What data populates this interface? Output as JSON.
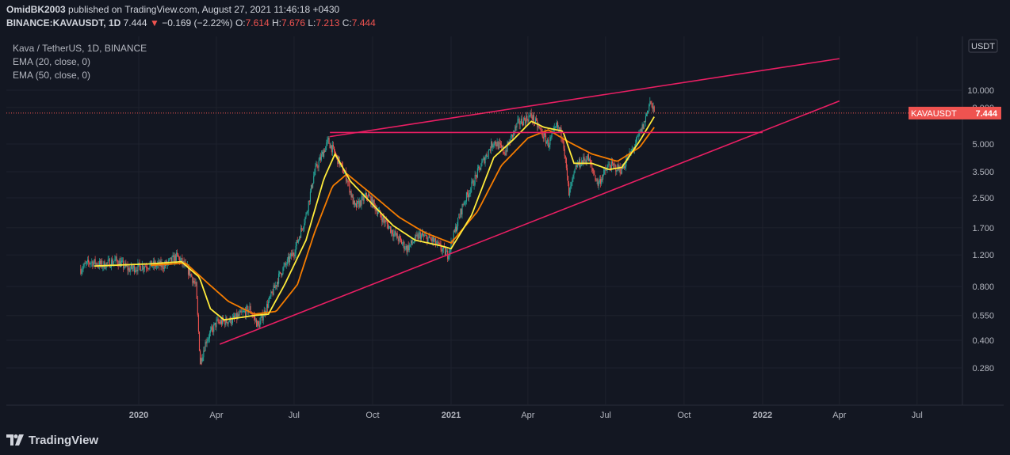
{
  "header": {
    "author": "OmidBK2003",
    "published_text": "published on TradingView.com, August 27, 2021 11:46:18 +0430",
    "symbol_line": "BINANCE:KAVAUSDT, 1D",
    "last": "7.444",
    "change": "−0.169 (−2.22%)",
    "o_label": "O:",
    "o_value": "7.614",
    "h_label": "H:",
    "h_value": "7.676",
    "l_label": "L:",
    "l_value": "7.213",
    "c_label": "C:",
    "c_value": "7.444"
  },
  "legend": {
    "title": "Kava / TetherUS, 1D, BINANCE",
    "ema20": "EMA (20, close, 0)",
    "ema50": "EMA (50, close, 0)"
  },
  "footer": {
    "brand": "TradingView"
  },
  "colors": {
    "background": "#131722",
    "up": "#26a69a",
    "down": "#ef5350",
    "ema20": "#ffeb3b",
    "ema50": "#f57c00",
    "trendline": "#e91e63",
    "price_badge": "#ef5350"
  },
  "chart_data": {
    "type": "candlestick",
    "scale": "log",
    "currency_label": "USDT",
    "y_ticks": [
      10,
      8,
      5,
      3.5,
      2.5,
      1.7,
      1.2,
      0.8,
      0.55,
      0.4,
      0.28
    ],
    "y_tick_labels": [
      "10.000",
      "8.000",
      "5.000",
      "3.500",
      "2.500",
      "1.700",
      "1.200",
      "0.800",
      "0.550",
      "0.400",
      "0.280"
    ],
    "x_ticks": [
      "2020",
      "Apr",
      "Jul",
      "Oct",
      "2021",
      "Apr",
      "Jul",
      "Oct",
      "2022",
      "Apr",
      "Jul"
    ],
    "x_ticks_bold": [
      true,
      false,
      false,
      false,
      true,
      false,
      false,
      false,
      true,
      false,
      false
    ],
    "x_tick_dates": [
      "2020-01-01",
      "2020-04-01",
      "2020-07-01",
      "2020-10-01",
      "2021-01-01",
      "2021-04-01",
      "2021-07-01",
      "2021-10-01",
      "2022-01-01",
      "2022-04-01",
      "2022-07-01"
    ],
    "last_price": 7.444,
    "last_price_label": "KAVAUSDT",
    "last_price_text": "7.444",
    "close_path": [
      [
        "2019-10-25",
        1.0
      ],
      [
        "2019-11-05",
        1.1
      ],
      [
        "2019-11-20",
        1.05
      ],
      [
        "2019-12-05",
        1.12
      ],
      [
        "2019-12-20",
        1.0
      ],
      [
        "2020-01-10",
        1.05
      ],
      [
        "2020-02-01",
        1.05
      ],
      [
        "2020-02-15",
        1.18
      ],
      [
        "2020-03-01",
        0.95
      ],
      [
        "2020-03-08",
        0.8
      ],
      [
        "2020-03-13",
        0.3
      ],
      [
        "2020-03-20",
        0.4
      ],
      [
        "2020-04-01",
        0.5
      ],
      [
        "2020-04-20",
        0.52
      ],
      [
        "2020-05-10",
        0.6
      ],
      [
        "2020-05-20",
        0.48
      ],
      [
        "2020-06-01",
        0.65
      ],
      [
        "2020-06-15",
        0.95
      ],
      [
        "2020-07-01",
        1.25
      ],
      [
        "2020-07-15",
        2.0
      ],
      [
        "2020-07-25",
        3.5
      ],
      [
        "2020-08-10",
        5.2
      ],
      [
        "2020-08-20",
        4.2
      ],
      [
        "2020-09-01",
        3.2
      ],
      [
        "2020-09-10",
        2.2
      ],
      [
        "2020-09-25",
        2.6
      ],
      [
        "2020-10-10",
        2.0
      ],
      [
        "2020-10-25",
        1.6
      ],
      [
        "2020-11-10",
        1.3
      ],
      [
        "2020-11-25",
        1.55
      ],
      [
        "2020-12-10",
        1.45
      ],
      [
        "2020-12-28",
        1.2
      ],
      [
        "2021-01-15",
        2.3
      ],
      [
        "2021-02-05",
        3.8
      ],
      [
        "2021-02-20",
        5.2
      ],
      [
        "2021-03-05",
        4.5
      ],
      [
        "2021-03-20",
        6.5
      ],
      [
        "2021-04-05",
        7.2
      ],
      [
        "2021-04-15",
        6.0
      ],
      [
        "2021-04-25",
        5.0
      ],
      [
        "2021-05-05",
        6.3
      ],
      [
        "2021-05-12",
        5.5
      ],
      [
        "2021-05-19",
        2.6
      ],
      [
        "2021-05-28",
        3.8
      ],
      [
        "2021-06-10",
        4.2
      ],
      [
        "2021-06-22",
        3.0
      ],
      [
        "2021-07-05",
        3.8
      ],
      [
        "2021-07-20",
        3.6
      ],
      [
        "2021-08-05",
        5.0
      ],
      [
        "2021-08-15",
        6.5
      ],
      [
        "2021-08-22",
        8.7
      ],
      [
        "2021-08-27",
        7.444
      ]
    ],
    "ema20_path": [
      [
        "2019-11-10",
        1.04
      ],
      [
        "2020-01-15",
        1.07
      ],
      [
        "2020-02-20",
        1.1
      ],
      [
        "2020-03-12",
        0.9
      ],
      [
        "2020-03-25",
        0.6
      ],
      [
        "2020-04-10",
        0.52
      ],
      [
        "2020-05-15",
        0.55
      ],
      [
        "2020-06-01",
        0.56
      ],
      [
        "2020-06-20",
        0.82
      ],
      [
        "2020-07-15",
        1.45
      ],
      [
        "2020-08-05",
        3.2
      ],
      [
        "2020-08-18",
        4.4
      ],
      [
        "2020-09-05",
        3.1
      ],
      [
        "2020-10-01",
        2.3
      ],
      [
        "2020-10-25",
        1.75
      ],
      [
        "2020-11-20",
        1.45
      ],
      [
        "2020-12-20",
        1.35
      ],
      [
        "2021-01-01",
        1.3
      ],
      [
        "2021-01-25",
        2.0
      ],
      [
        "2021-02-20",
        4.2
      ],
      [
        "2021-03-15",
        5.3
      ],
      [
        "2021-04-05",
        6.7
      ],
      [
        "2021-04-20",
        6.2
      ],
      [
        "2021-05-12",
        5.9
      ],
      [
        "2021-05-25",
        3.9
      ],
      [
        "2021-06-15",
        3.9
      ],
      [
        "2021-07-05",
        3.6
      ],
      [
        "2021-07-20",
        3.7
      ],
      [
        "2021-08-10",
        5.2
      ],
      [
        "2021-08-27",
        7.1
      ]
    ],
    "ema50_path": [
      [
        "2020-01-15",
        1.05
      ],
      [
        "2020-02-25",
        1.08
      ],
      [
        "2020-03-20",
        0.85
      ],
      [
        "2020-04-15",
        0.66
      ],
      [
        "2020-05-15",
        0.56
      ],
      [
        "2020-06-10",
        0.58
      ],
      [
        "2020-07-05",
        0.82
      ],
      [
        "2020-07-25",
        1.6
      ],
      [
        "2020-08-15",
        2.9
      ],
      [
        "2020-09-01",
        3.4
      ],
      [
        "2020-10-01",
        2.6
      ],
      [
        "2020-11-01",
        1.95
      ],
      [
        "2020-12-01",
        1.6
      ],
      [
        "2021-01-01",
        1.4
      ],
      [
        "2021-02-01",
        2.1
      ],
      [
        "2021-03-01",
        3.8
      ],
      [
        "2021-04-01",
        5.4
      ],
      [
        "2021-04-25",
        6.0
      ],
      [
        "2021-05-20",
        5.1
      ],
      [
        "2021-06-15",
        4.4
      ],
      [
        "2021-07-15",
        4.0
      ],
      [
        "2021-08-10",
        4.8
      ],
      [
        "2021-08-27",
        6.2
      ]
    ],
    "trendlines": [
      {
        "name": "upper-channel-line",
        "from": [
          "2020-08-12",
          5.5
        ],
        "to": [
          "2022-04-01",
          15.0
        ]
      },
      {
        "name": "horizontal-resistance-line",
        "from": [
          "2020-08-12",
          5.8
        ],
        "to": [
          "2022-01-01",
          5.8
        ]
      },
      {
        "name": "lower-support-line",
        "from": [
          "2020-04-05",
          0.38
        ],
        "to": [
          "2022-04-01",
          8.7
        ]
      }
    ]
  }
}
